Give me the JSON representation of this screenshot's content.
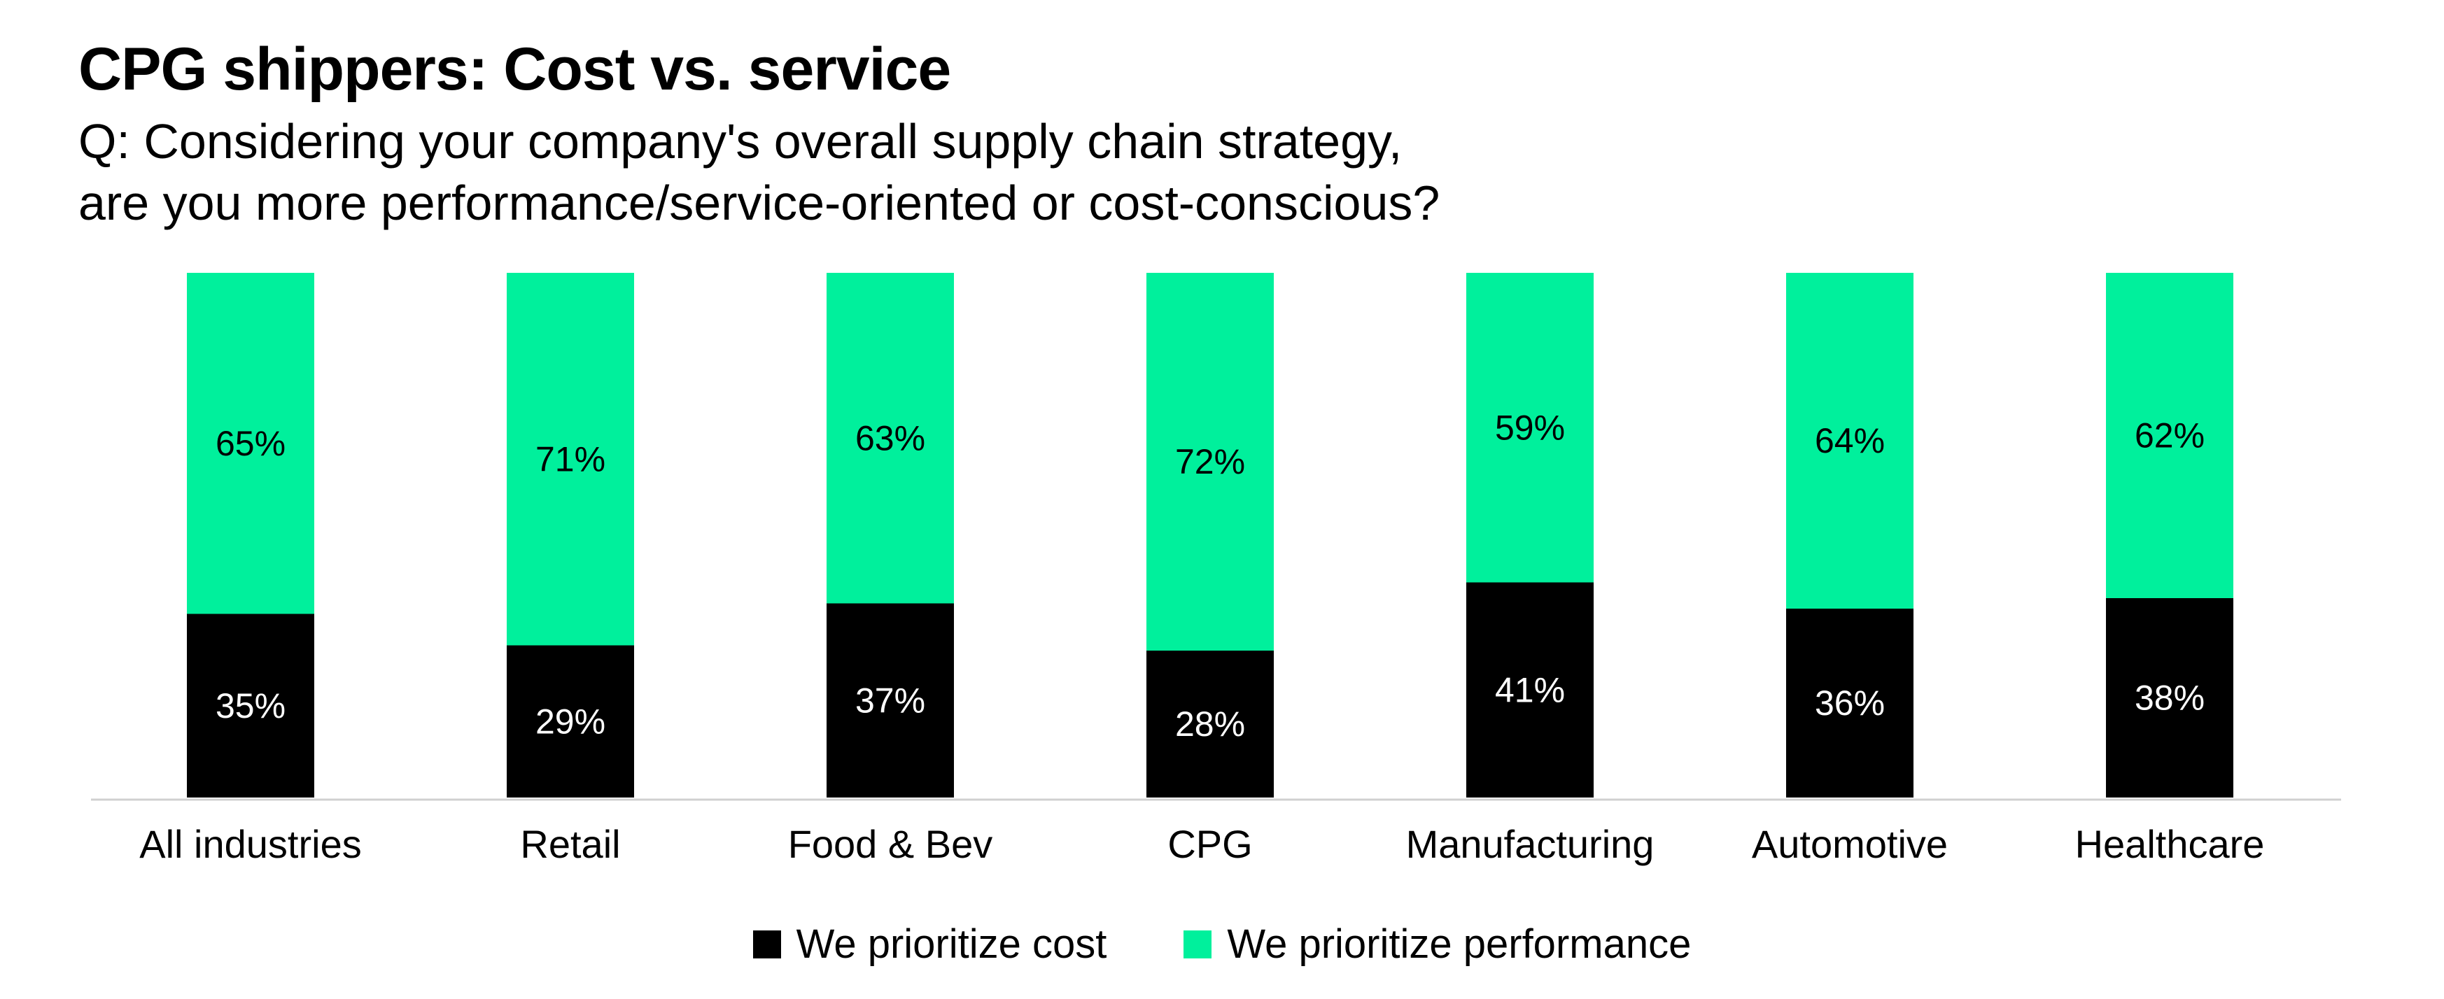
{
  "title": "CPG shippers: Cost vs. service",
  "subtitle_lines": [
    "Q: Considering your company's overall supply chain strategy,",
    "are you more performance/service-oriented or cost-conscious?"
  ],
  "legend": [
    {
      "label": "We prioritize cost",
      "color": "#000000"
    },
    {
      "label": "We prioritize performance",
      "color": "#00F09C"
    }
  ],
  "chart_data": {
    "type": "bar",
    "stacked": true,
    "normalized_percent": true,
    "categories": [
      "All industries",
      "Retail",
      "Food & Bev",
      "CPG",
      "Manufacturing",
      "Automotive",
      "Healthcare"
    ],
    "series": [
      {
        "name": "We prioritize cost",
        "color": "#000000",
        "values": [
          35,
          29,
          37,
          28,
          41,
          36,
          38
        ],
        "labels": [
          "35%",
          "29%",
          "37%",
          "28%",
          "41%",
          "36%",
          "38%"
        ]
      },
      {
        "name": "We prioritize performance",
        "color": "#00F09C",
        "values": [
          65,
          71,
          63,
          72,
          59,
          64,
          62
        ],
        "labels": [
          "65%",
          "71%",
          "63%",
          "72%",
          "59%",
          "64%",
          "62%"
        ]
      }
    ],
    "ylim": [
      0,
      100
    ],
    "grid": false,
    "legend_position": "bottom-center"
  }
}
